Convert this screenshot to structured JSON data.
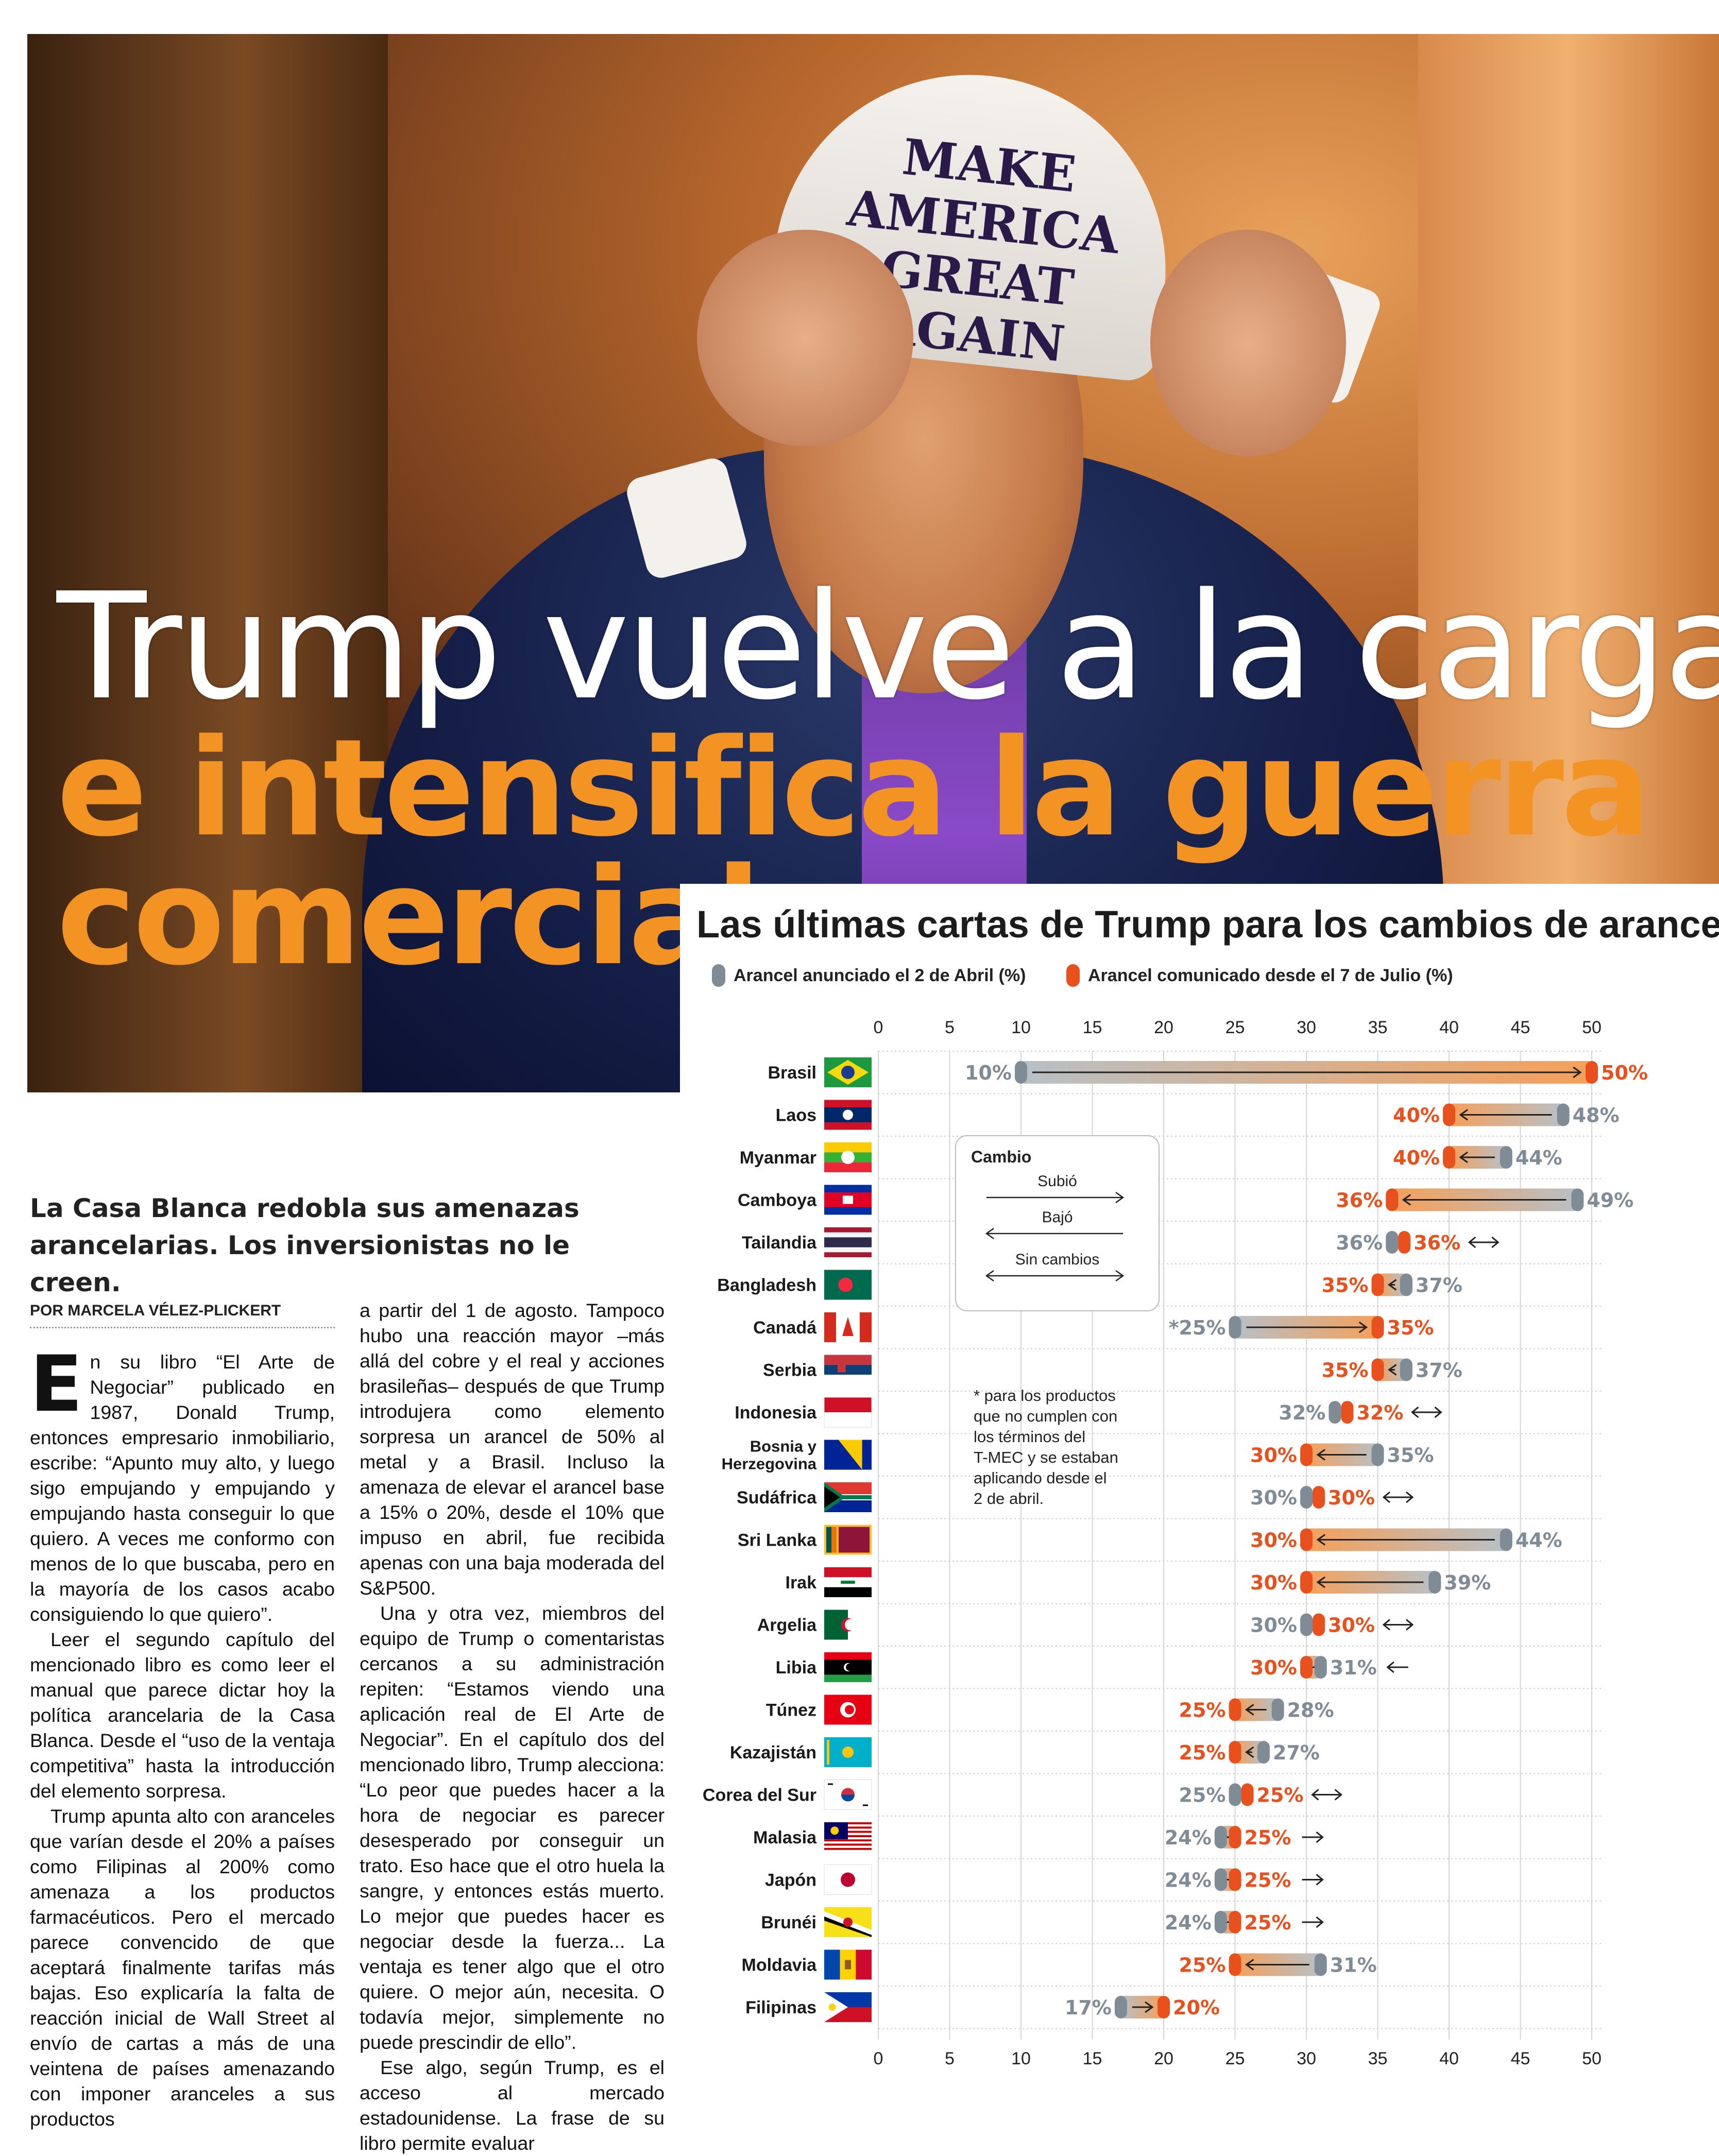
{
  "hero": {
    "cap_line1": "MAKE AMERICA",
    "cap_line2": "GREAT AGAIN"
  },
  "headline": {
    "line1": "Trump vuelve a la carga",
    "line2": "e intensifica la guerra",
    "line3": "comercial"
  },
  "subtitle": "La Casa Blanca redobla sus amenazas arancelarias. Los inversionistas no le creen.",
  "byline": "POR MARCELA VÉLEZ-PLICKERT",
  "article": {
    "dropcap": "E",
    "col1": [
      "n su libro “El Arte de Negociar” publicado en 1987, Donald Trump, entonces empresario inmobiliario, escribe: “Apunto muy alto, y luego sigo empujando y empujando y empujando hasta conseguir lo que quiero. A veces me conformo con menos de lo que buscaba, pero en la mayoría de los casos acabo consiguiendo lo que quiero”.",
      "Leer el segundo capítulo del mencionado libro es como leer el manual que parece dictar hoy la política arancelaria de la Casa Blanca. Desde el “uso de la ventaja competitiva” hasta la introducción del elemento sorpresa.",
      "Trump apunta alto con aranceles que varían desde el 20% a países como Filipinas al 200% como amenaza a los productos farmacéuticos. Pero el mercado parece convencido de que aceptará finalmente tarifas más bajas. Eso explicaría la falta de reacción inicial de Wall Street al envío de cartas a más de una veintena de países amenazando con imponer aranceles a sus productos"
    ],
    "col2": [
      "a partir del 1 de agosto. Tampoco hubo una reacción mayor –más allá del cobre y el real y acciones brasileñas– después de que Trump introdujera como elemento sorpresa un arancel de 50% al metal y a Brasil. Incluso la amenaza de elevar el arancel base a 15% o 20%, desde el 10% que impuso en abril, fue recibida apenas con una baja moderada del S&P500.",
      "Una y otra vez, miembros del equipo de Trump o comentaristas cercanos a su administración repiten: “Estamos viendo una aplicación real de El Arte de Negociar”. En el capítulo dos del mencionado libro, Trump alecciona: “Lo peor que puedes hacer a la hora de negociar es parecer desesperado por conseguir un trato. Eso hace que el otro huela la sangre, y entonces estás muerto. Lo mejor que puedes hacer es negociar desde la fuerza... La ventaja es tener algo que el otro quiere. O mejor aún, necesita. O todavía mejor, simplemente no puede prescindir de ello”.",
      "Ese algo, según Trump, es el acceso al mercado estadounidense. La frase de su libro permite evaluar"
    ]
  },
  "chart_data": {
    "type": "dumbbell",
    "title": "Las últimas cartas de Trump para los cambios de aranceles",
    "legend": [
      {
        "label": "Arancel anunciado el 2 de Abril (%)",
        "color": "#7f8c96"
      },
      {
        "label": "Arancel comunicado desde el 7 de Julio (%)",
        "color": "#e8501e"
      }
    ],
    "xlim": [
      0,
      50
    ],
    "ticks": [
      0,
      5,
      10,
      15,
      20,
      25,
      30,
      35,
      40,
      45,
      50
    ],
    "colors": {
      "april": "#7f8c96",
      "july": "#e8501e",
      "subio": "#f5a05a",
      "bajo": "#9aa4ac"
    },
    "cambio_box": {
      "title": "Cambio",
      "items": [
        "Subió",
        "Bajó",
        "Sin cambios"
      ]
    },
    "footnote": "* para los productos que no cumplen con los términos del T-MEC y se estaban aplicando desde el 2 de abril.",
    "countries": [
      {
        "name": "Brasil",
        "april": 10,
        "july": 50,
        "april_label": "10%",
        "july_label": "50%",
        "flag": "brasil"
      },
      {
        "name": "Laos",
        "april": 48,
        "july": 40,
        "april_label": "48%",
        "july_label": "40%",
        "flag": "laos"
      },
      {
        "name": "Myanmar",
        "april": 44,
        "july": 40,
        "april_label": "44%",
        "july_label": "40%",
        "flag": "myanmar"
      },
      {
        "name": "Camboya",
        "april": 49,
        "july": 36,
        "april_label": "49%",
        "july_label": "36%",
        "flag": "camboya"
      },
      {
        "name": "Tailandia",
        "april": 36,
        "july": 36,
        "april_label": "36%",
        "july_label": "36%",
        "flag": "tailandia"
      },
      {
        "name": "Bangladesh",
        "april": 37,
        "july": 35,
        "april_label": "37%",
        "july_label": "35%",
        "flag": "bangladesh"
      },
      {
        "name": "Canadá",
        "april": 25,
        "july": 35,
        "april_label": "*25%",
        "july_label": "35%",
        "flag": "canada"
      },
      {
        "name": "Serbia",
        "april": 37,
        "july": 35,
        "april_label": "37%",
        "july_label": "35%",
        "flag": "serbia"
      },
      {
        "name": "Indonesia",
        "april": 32,
        "july": 32,
        "april_label": "32%",
        "july_label": "32%",
        "flag": "indonesia"
      },
      {
        "name": "Bosnia y Herzegovina",
        "april": 35,
        "july": 30,
        "april_label": "35%",
        "july_label": "30%",
        "flag": "bosnia"
      },
      {
        "name": "Sudáfrica",
        "april": 30,
        "july": 30,
        "april_label": "30%",
        "july_label": "30%",
        "flag": "sudafrica"
      },
      {
        "name": "Sri Lanka",
        "april": 44,
        "july": 30,
        "april_label": "44%",
        "july_label": "30%",
        "flag": "srilanka"
      },
      {
        "name": "Irak",
        "april": 39,
        "july": 30,
        "april_label": "39%",
        "july_label": "30%",
        "flag": "irak"
      },
      {
        "name": "Argelia",
        "april": 30,
        "july": 30,
        "april_label": "30%",
        "july_label": "30%",
        "flag": "argelia"
      },
      {
        "name": "Libia",
        "april": 31,
        "july": 30,
        "april_label": "31%",
        "july_label": "30%",
        "flag": "libia"
      },
      {
        "name": "Túnez",
        "april": 28,
        "july": 25,
        "april_label": "28%",
        "july_label": "25%",
        "flag": "tunez"
      },
      {
        "name": "Kazajistán",
        "april": 27,
        "july": 25,
        "april_label": "27%",
        "july_label": "25%",
        "flag": "kazajistan"
      },
      {
        "name": "Corea del Sur",
        "april": 25,
        "july": 25,
        "april_label": "25%",
        "july_label": "25%",
        "flag": "corea"
      },
      {
        "name": "Malasia",
        "april": 24,
        "july": 25,
        "april_label": "24%",
        "july_label": "25%",
        "flag": "malasia"
      },
      {
        "name": "Japón",
        "april": 24,
        "july": 25,
        "april_label": "24%",
        "july_label": "25%",
        "flag": "japon"
      },
      {
        "name": "Brunéi",
        "april": 24,
        "july": 25,
        "april_label": "24%",
        "july_label": "25%",
        "flag": "brunei"
      },
      {
        "name": "Moldavia",
        "april": 31,
        "july": 25,
        "april_label": "31%",
        "july_label": "25%",
        "flag": "moldavia"
      },
      {
        "name": "Filipinas",
        "april": 17,
        "july": 20,
        "april_label": "17%",
        "july_label": "20%",
        "flag": "filipinas"
      }
    ]
  }
}
